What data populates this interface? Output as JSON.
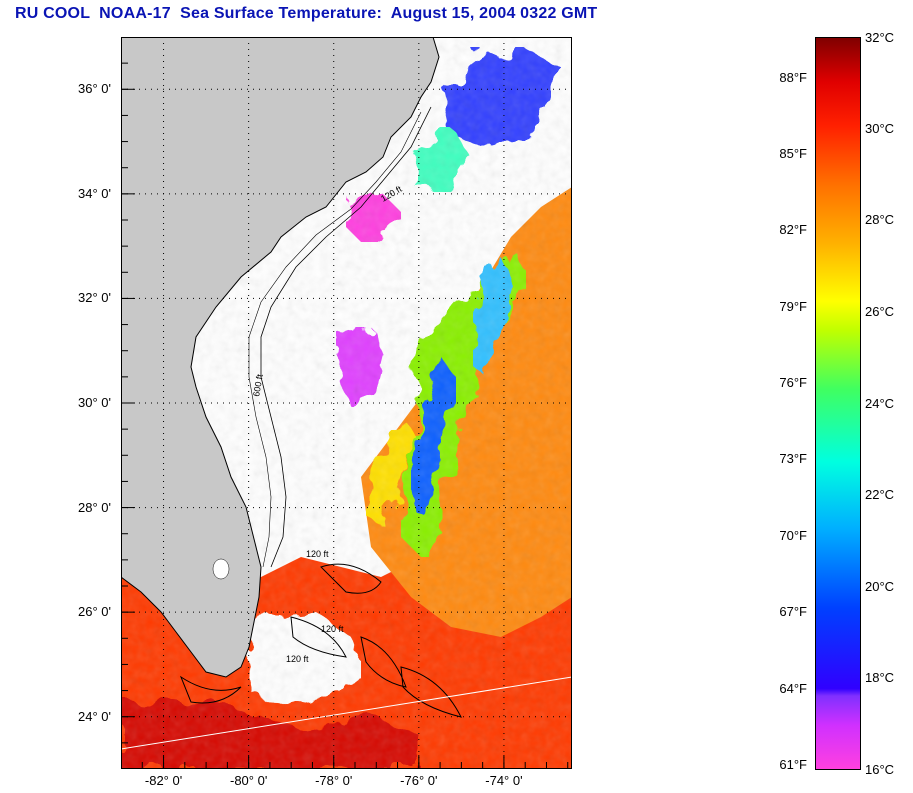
{
  "title": "RU COOL  NOAA-17  Sea Surface Temperature:  August 15, 2004 0322 GMT",
  "map": {
    "lat_labels": [
      "36° 0'",
      "34° 0'",
      "32° 0'",
      "30° 0'",
      "28° 0'",
      "26° 0'",
      "24° 0'"
    ],
    "lon_labels": [
      "-82° 0'",
      "-80° 0'",
      "-78° 0'",
      "-76° 0'",
      "-74° 0'"
    ],
    "lat_range": [
      23,
      37
    ],
    "lon_range": [
      -83,
      -72.4
    ],
    "grid": "dotted",
    "isobath_labels": [
      "120 ft",
      "600 ft",
      "120 ft",
      "120 ft",
      "120 ft"
    ],
    "colors": {
      "land": "#c8c8c8",
      "cloud_mask": "#ffffff",
      "coastline": "#000000"
    }
  },
  "colorbar": {
    "fahrenheit_labels": [
      "88°F",
      "85°F",
      "82°F",
      "79°F",
      "76°F",
      "73°F",
      "70°F",
      "67°F",
      "64°F",
      "61°F"
    ],
    "celsius_labels": [
      "32°C",
      "30°C",
      "28°C",
      "26°C",
      "24°C",
      "22°C",
      "20°C",
      "18°C",
      "16°C"
    ],
    "celsius_range": [
      16,
      32
    ],
    "palette": [
      "#ff40e0",
      "#8030ff",
      "#0040ff",
      "#00ffe0",
      "#40ff60",
      "#ffff00",
      "#ff7000",
      "#ff2000",
      "#800000"
    ]
  }
}
